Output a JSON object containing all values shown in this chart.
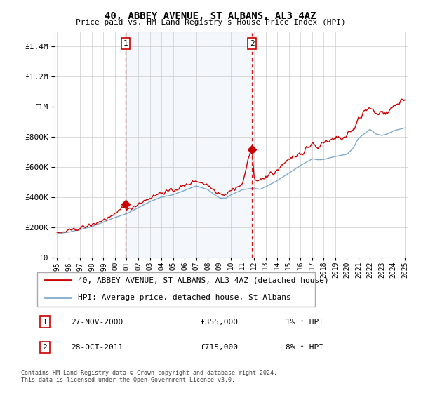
{
  "title": "40, ABBEY AVENUE, ST ALBANS, AL3 4AZ",
  "subtitle": "Price paid vs. HM Land Registry's House Price Index (HPI)",
  "sale1_date": "27-NOV-2000",
  "sale1_price": 355000,
  "sale1_hpi": "1% ↑ HPI",
  "sale1_year": 2000.9,
  "sale2_date": "28-OCT-2011",
  "sale2_price": 715000,
  "sale2_hpi": "8% ↑ HPI",
  "sale2_year": 2011.82,
  "legend_label1": "40, ABBEY AVENUE, ST ALBANS, AL3 4AZ (detached house)",
  "legend_label2": "HPI: Average price, detached house, St Albans",
  "footnote": "Contains HM Land Registry data © Crown copyright and database right 2024.\nThis data is licensed under the Open Government Licence v3.0.",
  "line_color_red": "#cc0000",
  "line_color_blue": "#7faacc",
  "vline_color": "#cc0000",
  "ylim": [
    0,
    1500000
  ],
  "yticks": [
    0,
    200000,
    400000,
    600000,
    800000,
    1000000,
    1200000,
    1400000
  ],
  "xlim_start": 1995.0,
  "xlim_end": 2025.3,
  "xticks": [
    1995,
    1996,
    1997,
    1998,
    1999,
    2000,
    2001,
    2002,
    2003,
    2004,
    2005,
    2006,
    2007,
    2008,
    2009,
    2010,
    2011,
    2012,
    2013,
    2014,
    2015,
    2016,
    2017,
    2018,
    2019,
    2020,
    2021,
    2022,
    2023,
    2024,
    2025
  ]
}
